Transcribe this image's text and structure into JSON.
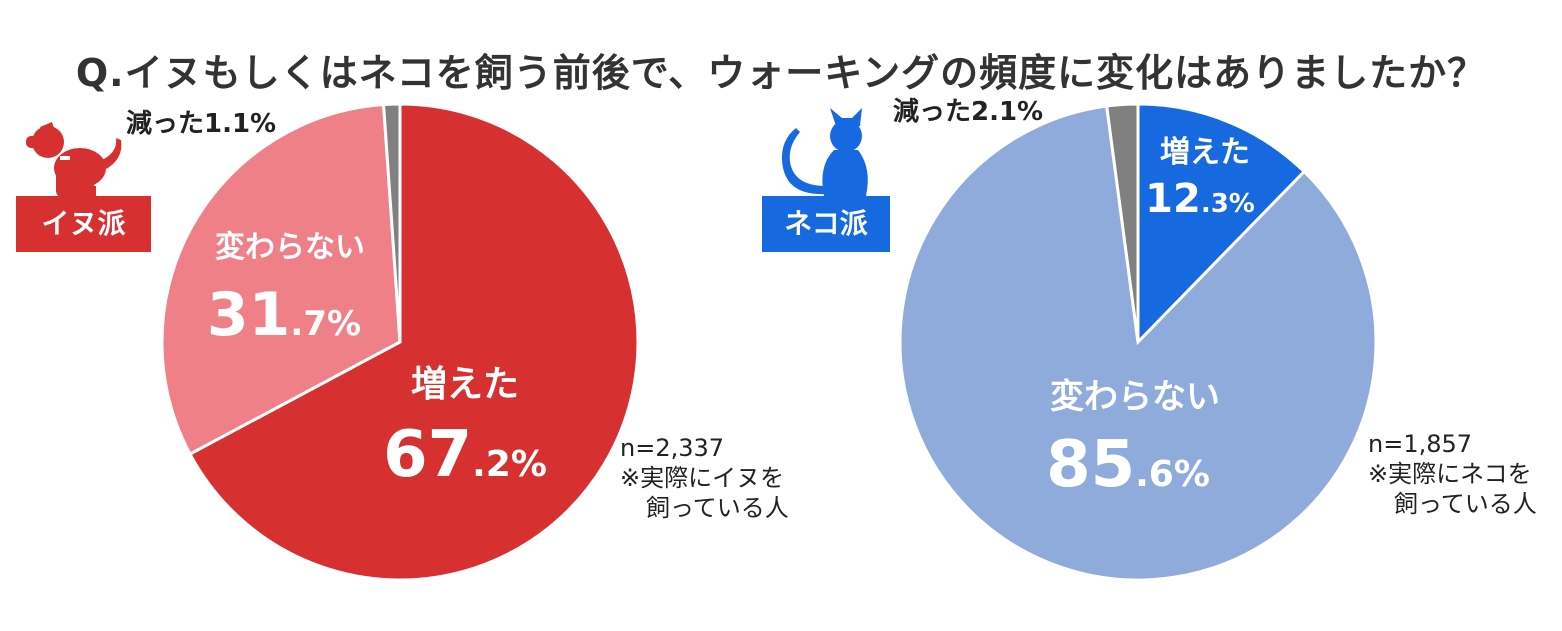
{
  "title": "Q.イヌもしくはネコを飼う前後で、ウォーキングの頻度に変化はありましたか？",
  "colors": {
    "dog_increase": "#d63031",
    "dog_same": "#f08087",
    "cat_increase": "#1769e0",
    "cat_same": "#8fabdc",
    "decrease": "#808080"
  },
  "chart_data": [
    {
      "type": "pie",
      "group_label": "イヌ派",
      "icon": "dog-icon",
      "sample_size": "n=2,337",
      "note_line1": "※実際にイヌを",
      "note_line2": "飼っている人",
      "slices": [
        {
          "label": "増えた",
          "int": "67",
          "dec": ".2%",
          "value": 67.2,
          "color": "#d63031"
        },
        {
          "label": "変わらない",
          "int": "31",
          "dec": ".7%",
          "value": 31.7,
          "color": "#f08087"
        },
        {
          "label": "減った1.1%",
          "value": 1.1,
          "color": "#808080"
        }
      ]
    },
    {
      "type": "pie",
      "group_label": "ネコ派",
      "icon": "cat-icon",
      "sample_size": "n=1,857",
      "note_line1": "※実際にネコを",
      "note_line2": "飼っている人",
      "slices": [
        {
          "label": "増えた",
          "int": "12",
          "dec": ".3%",
          "value": 12.3,
          "color": "#1769e0"
        },
        {
          "label": "変わらない",
          "int": "85",
          "dec": ".6%",
          "value": 85.6,
          "color": "#8fabdc"
        },
        {
          "label": "減った2.1%",
          "value": 2.1,
          "color": "#808080"
        }
      ]
    }
  ]
}
